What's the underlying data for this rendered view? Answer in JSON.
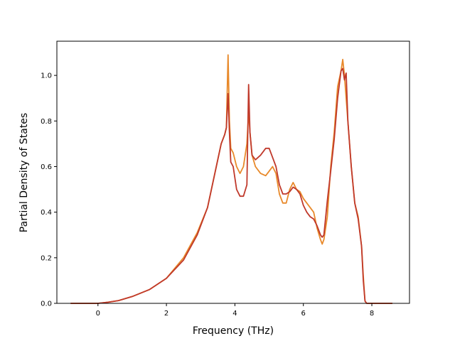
{
  "chart_data": {
    "type": "line",
    "title": "",
    "xlabel": "Frequency (THz)",
    "ylabel": "Partial Density of States",
    "xlim": [
      -1.2,
      9.1
    ],
    "ylim": [
      0.0,
      1.15
    ],
    "xticks": [
      0,
      2,
      4,
      6,
      8
    ],
    "xtick_labels": [
      "0",
      "2",
      "4",
      "6",
      "8"
    ],
    "yticks": [
      0.0,
      0.2,
      0.4,
      0.6,
      0.8,
      1.0
    ],
    "ytick_labels": [
      "0.0",
      "0.2",
      "0.4",
      "0.6",
      "0.8",
      "1.0"
    ],
    "grid": false,
    "legend": "none",
    "series": [
      {
        "color": "#e8892a",
        "points": [
          [
            -0.8,
            0.0
          ],
          [
            0.0,
            0.0
          ],
          [
            0.3,
            0.005
          ],
          [
            0.6,
            0.012
          ],
          [
            1.0,
            0.03
          ],
          [
            1.5,
            0.06
          ],
          [
            2.0,
            0.11
          ],
          [
            2.5,
            0.2
          ],
          [
            2.9,
            0.31
          ],
          [
            3.2,
            0.42
          ],
          [
            3.4,
            0.56
          ],
          [
            3.6,
            0.7
          ],
          [
            3.7,
            0.74
          ],
          [
            3.75,
            0.77
          ],
          [
            3.8,
            1.09
          ],
          [
            3.84,
            0.8
          ],
          [
            3.88,
            0.68
          ],
          [
            3.95,
            0.66
          ],
          [
            4.05,
            0.6
          ],
          [
            4.15,
            0.57
          ],
          [
            4.25,
            0.6
          ],
          [
            4.35,
            0.7
          ],
          [
            4.4,
            0.84
          ],
          [
            4.44,
            0.75
          ],
          [
            4.5,
            0.65
          ],
          [
            4.6,
            0.6
          ],
          [
            4.75,
            0.57
          ],
          [
            4.9,
            0.56
          ],
          [
            5.0,
            0.58
          ],
          [
            5.1,
            0.6
          ],
          [
            5.2,
            0.57
          ],
          [
            5.3,
            0.48
          ],
          [
            5.4,
            0.44
          ],
          [
            5.5,
            0.44
          ],
          [
            5.6,
            0.5
          ],
          [
            5.7,
            0.53
          ],
          [
            5.8,
            0.5
          ],
          [
            5.9,
            0.49
          ],
          [
            6.0,
            0.46
          ],
          [
            6.1,
            0.44
          ],
          [
            6.2,
            0.42
          ],
          [
            6.3,
            0.4
          ],
          [
            6.4,
            0.33
          ],
          [
            6.5,
            0.28
          ],
          [
            6.55,
            0.26
          ],
          [
            6.6,
            0.28
          ],
          [
            6.7,
            0.38
          ],
          [
            6.8,
            0.6
          ],
          [
            6.9,
            0.75
          ],
          [
            7.0,
            0.95
          ],
          [
            7.1,
            1.02
          ],
          [
            7.15,
            1.07
          ],
          [
            7.2,
            1.0
          ],
          [
            7.3,
            0.8
          ],
          [
            7.4,
            0.6
          ],
          [
            7.5,
            0.44
          ],
          [
            7.6,
            0.38
          ],
          [
            7.7,
            0.25
          ],
          [
            7.75,
            0.12
          ],
          [
            7.8,
            0.01
          ],
          [
            7.85,
            0.0
          ],
          [
            8.6,
            0.0
          ]
        ]
      },
      {
        "color": "#c0392b",
        "points": [
          [
            -0.8,
            0.0
          ],
          [
            0.0,
            0.0
          ],
          [
            0.3,
            0.005
          ],
          [
            0.6,
            0.012
          ],
          [
            1.0,
            0.03
          ],
          [
            1.5,
            0.06
          ],
          [
            2.0,
            0.11
          ],
          [
            2.5,
            0.19
          ],
          [
            2.9,
            0.3
          ],
          [
            3.2,
            0.42
          ],
          [
            3.4,
            0.56
          ],
          [
            3.6,
            0.7
          ],
          [
            3.7,
            0.74
          ],
          [
            3.75,
            0.77
          ],
          [
            3.8,
            0.92
          ],
          [
            3.84,
            0.75
          ],
          [
            3.88,
            0.62
          ],
          [
            3.95,
            0.6
          ],
          [
            4.05,
            0.5
          ],
          [
            4.15,
            0.47
          ],
          [
            4.25,
            0.47
          ],
          [
            4.35,
            0.52
          ],
          [
            4.4,
            0.96
          ],
          [
            4.44,
            0.75
          ],
          [
            4.5,
            0.65
          ],
          [
            4.6,
            0.63
          ],
          [
            4.75,
            0.65
          ],
          [
            4.9,
            0.68
          ],
          [
            5.0,
            0.68
          ],
          [
            5.1,
            0.64
          ],
          [
            5.2,
            0.6
          ],
          [
            5.3,
            0.52
          ],
          [
            5.4,
            0.48
          ],
          [
            5.5,
            0.48
          ],
          [
            5.6,
            0.49
          ],
          [
            5.7,
            0.51
          ],
          [
            5.8,
            0.5
          ],
          [
            5.9,
            0.48
          ],
          [
            6.0,
            0.43
          ],
          [
            6.1,
            0.4
          ],
          [
            6.2,
            0.38
          ],
          [
            6.3,
            0.37
          ],
          [
            6.4,
            0.34
          ],
          [
            6.5,
            0.3
          ],
          [
            6.55,
            0.29
          ],
          [
            6.6,
            0.3
          ],
          [
            6.7,
            0.45
          ],
          [
            6.8,
            0.58
          ],
          [
            6.9,
            0.72
          ],
          [
            7.0,
            0.9
          ],
          [
            7.1,
            1.02
          ],
          [
            7.15,
            1.03
          ],
          [
            7.2,
            0.98
          ],
          [
            7.25,
            1.01
          ],
          [
            7.3,
            0.8
          ],
          [
            7.4,
            0.6
          ],
          [
            7.5,
            0.44
          ],
          [
            7.6,
            0.37
          ],
          [
            7.7,
            0.25
          ],
          [
            7.75,
            0.1
          ],
          [
            7.8,
            0.01
          ],
          [
            7.85,
            0.0
          ],
          [
            8.6,
            0.0
          ]
        ]
      }
    ]
  }
}
